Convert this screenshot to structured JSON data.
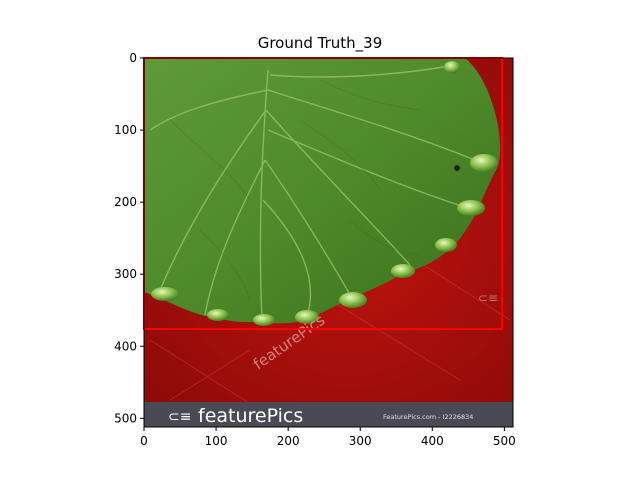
{
  "figure": {
    "title": "Ground Truth_39",
    "x_ticks": [
      "0",
      "100",
      "200",
      "300",
      "400",
      "500"
    ],
    "y_ticks": [
      "0",
      "100",
      "200",
      "300",
      "400",
      "500"
    ],
    "x_tick_values": [
      0,
      100,
      200,
      300,
      400,
      500
    ],
    "y_tick_values": [
      0,
      100,
      200,
      300,
      400,
      500
    ],
    "image_extent": {
      "width": 512,
      "height": 512
    },
    "box": {
      "x0": 0,
      "y0": 0,
      "x1": 497,
      "y1": 376,
      "color": "#ff0000"
    }
  },
  "photo": {
    "subject": "leaf-with-water-drops",
    "background_color": "#a80f0c",
    "leaf_color": "#4e8a2a",
    "brand_text": "featurePics",
    "credit_text": "FeaturePics.com - I2226834",
    "watermark_text": "featurePics"
  }
}
